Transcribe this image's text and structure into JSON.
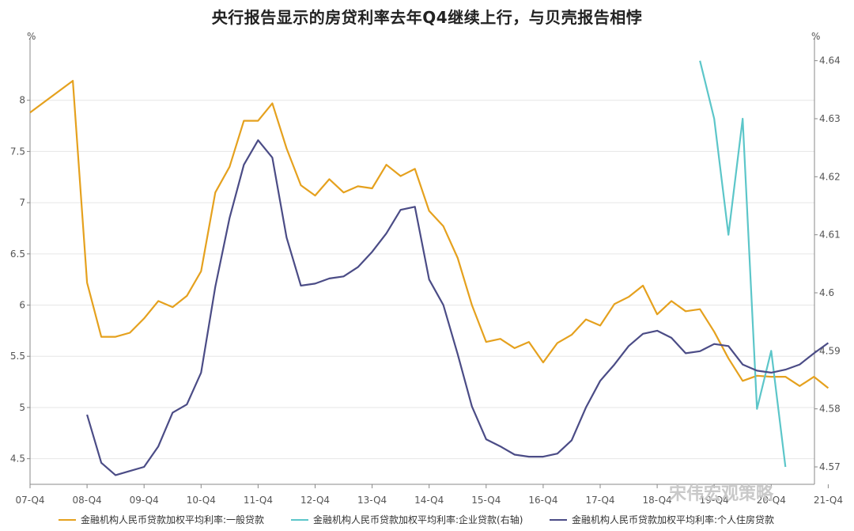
{
  "chart_data": {
    "type": "line",
    "title": "央行报告显示的房贷利率去年Q4继续上行，与贝壳报告相悖",
    "left_unit": "%",
    "right_unit": "%",
    "x_tick_labels": [
      "07-Q4",
      "08-Q4",
      "09-Q4",
      "10-Q4",
      "11-Q4",
      "12-Q4",
      "13-Q4",
      "14-Q4",
      "15-Q4",
      "16-Q4",
      "17-Q4",
      "18-Q4",
      "19-Q4",
      "20-Q4",
      "21-Q4"
    ],
    "ylim_left": [
      4.25,
      8.5
    ],
    "yticks_left": [
      4.5,
      5,
      5.5,
      6,
      6.5,
      7,
      7.5,
      8
    ],
    "ylim_right": [
      4.567,
      4.642
    ],
    "yticks_right": [
      4.57,
      4.58,
      4.59,
      4.6,
      4.61,
      4.62,
      4.63,
      4.64
    ],
    "grid": true,
    "legend_position": "bottom",
    "series": [
      {
        "name": "金融机构人民币贷款加权平均利率:一般贷款",
        "axis": "left",
        "color": "#E5A11E",
        "points": [
          {
            "x": "07-Q4",
            "y": 7.88
          },
          {
            "x": "08-Q3",
            "y": 8.19
          },
          {
            "x": "08-Q4",
            "y": 6.22
          },
          {
            "x": "09-Q1",
            "y": 5.69
          },
          {
            "x": "09-Q2",
            "y": 5.69
          },
          {
            "x": "09-Q3",
            "y": 5.73
          },
          {
            "x": "09-Q4",
            "y": 5.87
          },
          {
            "x": "10-Q1",
            "y": 6.04
          },
          {
            "x": "10-Q2",
            "y": 5.98
          },
          {
            "x": "10-Q3",
            "y": 6.09
          },
          {
            "x": "10-Q4",
            "y": 6.33
          },
          {
            "x": "11-Q1",
            "y": 7.1
          },
          {
            "x": "11-Q2",
            "y": 7.35
          },
          {
            "x": "11-Q3",
            "y": 7.8
          },
          {
            "x": "11-Q4",
            "y": 7.8
          },
          {
            "x": "12-Q1",
            "y": 7.97
          },
          {
            "x": "12-Q2",
            "y": 7.53
          },
          {
            "x": "12-Q3",
            "y": 7.17
          },
          {
            "x": "12-Q4",
            "y": 7.07
          },
          {
            "x": "13-Q1",
            "y": 7.23
          },
          {
            "x": "13-Q2",
            "y": 7.1
          },
          {
            "x": "13-Q3",
            "y": 7.16
          },
          {
            "x": "13-Q4",
            "y": 7.14
          },
          {
            "x": "14-Q1",
            "y": 7.37
          },
          {
            "x": "14-Q2",
            "y": 7.26
          },
          {
            "x": "14-Q3",
            "y": 7.33
          },
          {
            "x": "14-Q4",
            "y": 6.92
          },
          {
            "x": "15-Q1",
            "y": 6.77
          },
          {
            "x": "15-Q2",
            "y": 6.46
          },
          {
            "x": "15-Q3",
            "y": 6.0
          },
          {
            "x": "15-Q4",
            "y": 5.64
          },
          {
            "x": "16-Q1",
            "y": 5.67
          },
          {
            "x": "16-Q2",
            "y": 5.58
          },
          {
            "x": "16-Q3",
            "y": 5.64
          },
          {
            "x": "16-Q4",
            "y": 5.44
          },
          {
            "x": "17-Q1",
            "y": 5.63
          },
          {
            "x": "17-Q2",
            "y": 5.71
          },
          {
            "x": "17-Q3",
            "y": 5.86
          },
          {
            "x": "17-Q4",
            "y": 5.8
          },
          {
            "x": "18-Q1",
            "y": 6.01
          },
          {
            "x": "18-Q2",
            "y": 6.08
          },
          {
            "x": "18-Q3",
            "y": 6.19
          },
          {
            "x": "18-Q4",
            "y": 5.91
          },
          {
            "x": "19-Q1",
            "y": 6.04
          },
          {
            "x": "19-Q2",
            "y": 5.94
          },
          {
            "x": "19-Q3",
            "y": 5.96
          },
          {
            "x": "19-Q4",
            "y": 5.74
          },
          {
            "x": "20-Q1",
            "y": 5.48
          },
          {
            "x": "20-Q2",
            "y": 5.26
          },
          {
            "x": "20-Q3",
            "y": 5.31
          },
          {
            "x": "20-Q4",
            "y": 5.3
          },
          {
            "x": "21-Q1",
            "y": 5.3
          },
          {
            "x": "21-Q2",
            "y": 5.21
          },
          {
            "x": "21-Q3",
            "y": 5.3
          },
          {
            "x": "21-Q4",
            "y": 5.19
          }
        ]
      },
      {
        "name": "金融机构人民币贷款加权平均利率:企业贷款(右轴)",
        "axis": "right",
        "color": "#5CC6C9",
        "points": [
          {
            "x": "19-Q3",
            "y": 4.64
          },
          {
            "x": "19-Q4",
            "y": 4.63
          },
          {
            "x": "20-Q1",
            "y": 4.61
          },
          {
            "x": "20-Q2",
            "y": 4.63
          },
          {
            "x": "20-Q3",
            "y": 4.58
          },
          {
            "x": "20-Q4",
            "y": 4.59
          },
          {
            "x": "21-Q1",
            "y": 4.57
          }
        ]
      },
      {
        "name": "金融机构人民币贷款加权平均利率:个人住房贷款",
        "axis": "left",
        "color": "#4B4C86",
        "points": [
          {
            "x": "08-Q4",
            "y": 4.93
          },
          {
            "x": "09-Q1",
            "y": 4.46
          },
          {
            "x": "09-Q2",
            "y": 4.34
          },
          {
            "x": "09-Q3",
            "y": 4.38
          },
          {
            "x": "09-Q4",
            "y": 4.42
          },
          {
            "x": "10-Q1",
            "y": 4.62
          },
          {
            "x": "10-Q2",
            "y": 4.95
          },
          {
            "x": "10-Q3",
            "y": 5.03
          },
          {
            "x": "10-Q4",
            "y": 5.34
          },
          {
            "x": "11-Q1",
            "y": 6.18
          },
          {
            "x": "11-Q2",
            "y": 6.85
          },
          {
            "x": "11-Q3",
            "y": 7.37
          },
          {
            "x": "11-Q4",
            "y": 7.61
          },
          {
            "x": "12-Q1",
            "y": 7.44
          },
          {
            "x": "12-Q2",
            "y": 6.66
          },
          {
            "x": "12-Q3",
            "y": 6.19
          },
          {
            "x": "12-Q4",
            "y": 6.21
          },
          {
            "x": "13-Q1",
            "y": 6.26
          },
          {
            "x": "13-Q2",
            "y": 6.28
          },
          {
            "x": "13-Q3",
            "y": 6.37
          },
          {
            "x": "13-Q4",
            "y": 6.52
          },
          {
            "x": "14-Q1",
            "y": 6.7
          },
          {
            "x": "14-Q2",
            "y": 6.93
          },
          {
            "x": "14-Q3",
            "y": 6.96
          },
          {
            "x": "14-Q4",
            "y": 6.25
          },
          {
            "x": "15-Q1",
            "y": 6.0
          },
          {
            "x": "15-Q2",
            "y": 5.52
          },
          {
            "x": "15-Q3",
            "y": 5.01
          },
          {
            "x": "15-Q4",
            "y": 4.69
          },
          {
            "x": "16-Q1",
            "y": 4.62
          },
          {
            "x": "16-Q2",
            "y": 4.54
          },
          {
            "x": "16-Q3",
            "y": 4.52
          },
          {
            "x": "16-Q4",
            "y": 4.52
          },
          {
            "x": "17-Q1",
            "y": 4.55
          },
          {
            "x": "17-Q2",
            "y": 4.68
          },
          {
            "x": "17-Q3",
            "y": 5.0
          },
          {
            "x": "17-Q4",
            "y": 5.26
          },
          {
            "x": "18-Q1",
            "y": 5.42
          },
          {
            "x": "18-Q2",
            "y": 5.6
          },
          {
            "x": "18-Q3",
            "y": 5.72
          },
          {
            "x": "18-Q4",
            "y": 5.75
          },
          {
            "x": "19-Q1",
            "y": 5.68
          },
          {
            "x": "19-Q2",
            "y": 5.53
          },
          {
            "x": "19-Q3",
            "y": 5.55
          },
          {
            "x": "19-Q4",
            "y": 5.62
          },
          {
            "x": "20-Q1",
            "y": 5.6
          },
          {
            "x": "20-Q2",
            "y": 5.42
          },
          {
            "x": "20-Q3",
            "y": 5.36
          },
          {
            "x": "20-Q4",
            "y": 5.34
          },
          {
            "x": "21-Q1",
            "y": 5.37
          },
          {
            "x": "21-Q2",
            "y": 5.42
          },
          {
            "x": "21-Q3",
            "y": 5.53
          },
          {
            "x": "21-Q4",
            "y": 5.63
          }
        ]
      }
    ]
  },
  "watermark": "宋伟宏观策略"
}
